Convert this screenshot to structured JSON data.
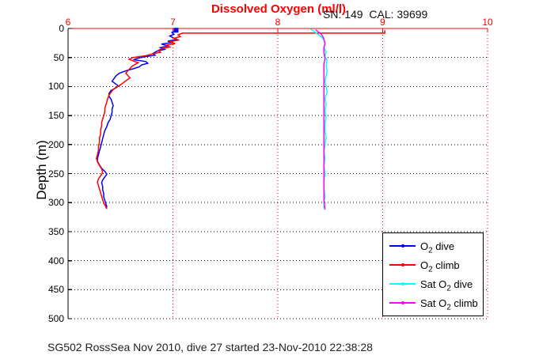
{
  "title": "Dissolved Oxygen (ml/l)",
  "annotation": "SN: 149  CAL: 39699",
  "footer": "SG502 RossSea Nov 2010, dive 27 started 23-Nov-2010 22:38:28",
  "chart_data": {
    "type": "line",
    "title": "Dissolved Oxygen (ml/l)",
    "xlabel": "",
    "ylabel": "Depth (m)",
    "xlim": [
      6,
      10
    ],
    "ylim": [
      0,
      500
    ],
    "y_axis_reversed": true,
    "xticks": [
      6,
      7,
      8,
      9,
      10
    ],
    "yticks": [
      0,
      50,
      100,
      150,
      200,
      250,
      300,
      350,
      400,
      450,
      500
    ],
    "x_gridlines": [
      7,
      8,
      9,
      10
    ],
    "y_gridlines": [
      50,
      100,
      150,
      200,
      250,
      300,
      350,
      400,
      450,
      500
    ],
    "grid_style": "dotted",
    "x_axis_color": "#ff0000",
    "y_axis_color": "#000000",
    "x_gridline_color": "#ff0000",
    "y_gridline_color": "#000000",
    "legend_position": "bottom-right",
    "surface_marker": {
      "series": "O2 dive",
      "x": 7.03,
      "depth": 3,
      "shape": "square",
      "color": "#0000ff"
    },
    "series": [
      {
        "name": "O2 dive",
        "color": "#0000ff",
        "points": [
          [
            7.02,
            2
          ],
          [
            7.03,
            4
          ],
          [
            6.99,
            7
          ],
          [
            7.01,
            10
          ],
          [
            6.97,
            13
          ],
          [
            7.0,
            16
          ],
          [
            7.04,
            19
          ],
          [
            6.95,
            22
          ],
          [
            7.0,
            24
          ],
          [
            6.89,
            27
          ],
          [
            6.96,
            30
          ],
          [
            6.88,
            33
          ],
          [
            6.92,
            36
          ],
          [
            6.85,
            39
          ],
          [
            6.81,
            43
          ],
          [
            6.83,
            46
          ],
          [
            6.72,
            49
          ],
          [
            6.65,
            52
          ],
          [
            6.63,
            54
          ],
          [
            6.74,
            57
          ],
          [
            6.76,
            60
          ],
          [
            6.7,
            63
          ],
          [
            6.68,
            66
          ],
          [
            6.63,
            69
          ],
          [
            6.55,
            73
          ],
          [
            6.49,
            77
          ],
          [
            6.46,
            81
          ],
          [
            6.44,
            86
          ],
          [
            6.42,
            91
          ],
          [
            6.45,
            95
          ],
          [
            6.48,
            99
          ],
          [
            6.45,
            103
          ],
          [
            6.41,
            107
          ],
          [
            6.39,
            112
          ],
          [
            6.39,
            117
          ],
          [
            6.41,
            122
          ],
          [
            6.42,
            127
          ],
          [
            6.43,
            133
          ],
          [
            6.42,
            139
          ],
          [
            6.42,
            145
          ],
          [
            6.41,
            151
          ],
          [
            6.4,
            157
          ],
          [
            6.38,
            163
          ],
          [
            6.37,
            169
          ],
          [
            6.35,
            176
          ],
          [
            6.34,
            183
          ],
          [
            6.33,
            190
          ],
          [
            6.32,
            197
          ],
          [
            6.31,
            204
          ],
          [
            6.3,
            211
          ],
          [
            6.29,
            218
          ],
          [
            6.28,
            224
          ],
          [
            6.28,
            229
          ],
          [
            6.3,
            235
          ],
          [
            6.32,
            241
          ],
          [
            6.35,
            246
          ],
          [
            6.37,
            251
          ],
          [
            6.35,
            256
          ],
          [
            6.33,
            261
          ],
          [
            6.32,
            266
          ],
          [
            6.33,
            272
          ],
          [
            6.33,
            278
          ],
          [
            6.34,
            284
          ],
          [
            6.34,
            290
          ],
          [
            6.35,
            296
          ],
          [
            6.36,
            302
          ],
          [
            6.37,
            307
          ],
          [
            6.36,
            310
          ]
        ]
      },
      {
        "name": "O2 climb",
        "color": "#ff0000",
        "points": [
          [
            9.02,
            3
          ],
          [
            9.02,
            8
          ],
          [
            7.09,
            8
          ],
          [
            7.05,
            11
          ],
          [
            7.07,
            14
          ],
          [
            7.01,
            17
          ],
          [
            7.05,
            20
          ],
          [
            6.97,
            23
          ],
          [
            7.02,
            26
          ],
          [
            6.93,
            29
          ],
          [
            6.97,
            32
          ],
          [
            6.89,
            35
          ],
          [
            6.86,
            38
          ],
          [
            6.88,
            41
          ],
          [
            6.8,
            44
          ],
          [
            6.74,
            47
          ],
          [
            6.62,
            50
          ],
          [
            6.58,
            53
          ],
          [
            6.62,
            56
          ],
          [
            6.67,
            59
          ],
          [
            6.64,
            62
          ],
          [
            6.61,
            65
          ],
          [
            6.59,
            69
          ],
          [
            6.57,
            73
          ],
          [
            6.55,
            77
          ],
          [
            6.57,
            81
          ],
          [
            6.59,
            85
          ],
          [
            6.56,
            89
          ],
          [
            6.53,
            93
          ],
          [
            6.5,
            97
          ],
          [
            6.46,
            101
          ],
          [
            6.43,
            105
          ],
          [
            6.41,
            110
          ],
          [
            6.39,
            115
          ],
          [
            6.38,
            120
          ],
          [
            6.37,
            126
          ],
          [
            6.36,
            132
          ],
          [
            6.35,
            138
          ],
          [
            6.35,
            144
          ],
          [
            6.34,
            150
          ],
          [
            6.33,
            156
          ],
          [
            6.32,
            162
          ],
          [
            6.32,
            168
          ],
          [
            6.31,
            175
          ],
          [
            6.31,
            182
          ],
          [
            6.3,
            189
          ],
          [
            6.3,
            196
          ],
          [
            6.29,
            203
          ],
          [
            6.29,
            210
          ],
          [
            6.28,
            217
          ],
          [
            6.27,
            224
          ],
          [
            6.28,
            230
          ],
          [
            6.3,
            236
          ],
          [
            6.32,
            242
          ],
          [
            6.33,
            248
          ],
          [
            6.31,
            254
          ],
          [
            6.29,
            259
          ],
          [
            6.28,
            265
          ],
          [
            6.29,
            271
          ],
          [
            6.3,
            277
          ],
          [
            6.31,
            283
          ],
          [
            6.32,
            289
          ],
          [
            6.33,
            295
          ],
          [
            6.34,
            301
          ],
          [
            6.36,
            307
          ],
          [
            6.37,
            311
          ]
        ]
      },
      {
        "name": "Sat O2 dive",
        "color": "#00ffff",
        "points": [
          [
            8.31,
            1
          ],
          [
            8.34,
            4
          ],
          [
            8.36,
            7
          ],
          [
            8.39,
            11
          ],
          [
            8.42,
            15
          ],
          [
            8.44,
            20
          ],
          [
            8.45,
            26
          ],
          [
            8.44,
            33
          ],
          [
            8.46,
            40
          ],
          [
            8.45,
            48
          ],
          [
            8.47,
            56
          ],
          [
            8.46,
            64
          ],
          [
            8.47,
            73
          ],
          [
            8.46,
            82
          ],
          [
            8.45,
            91
          ],
          [
            8.46,
            100
          ],
          [
            8.47,
            110
          ],
          [
            8.45,
            120
          ],
          [
            8.46,
            131
          ],
          [
            8.45,
            142
          ],
          [
            8.46,
            153
          ],
          [
            8.45,
            164
          ],
          [
            8.45,
            176
          ],
          [
            8.46,
            188
          ],
          [
            8.45,
            200
          ],
          [
            8.44,
            212
          ],
          [
            8.45,
            224
          ],
          [
            8.44,
            237
          ],
          [
            8.45,
            250
          ],
          [
            8.44,
            262
          ],
          [
            8.44,
            275
          ],
          [
            8.45,
            288
          ],
          [
            8.44,
            300
          ],
          [
            8.44,
            310
          ]
        ]
      },
      {
        "name": "Sat O2 climb",
        "color": "#ff00ff",
        "points": [
          [
            8.36,
            2
          ],
          [
            8.38,
            5
          ],
          [
            8.41,
            9
          ],
          [
            8.43,
            14
          ],
          [
            8.44,
            19
          ],
          [
            8.45,
            25
          ],
          [
            8.44,
            33
          ],
          [
            8.44,
            42
          ],
          [
            8.45,
            52
          ],
          [
            8.44,
            62
          ],
          [
            8.44,
            73
          ],
          [
            8.44,
            85
          ],
          [
            8.44,
            97
          ],
          [
            8.44,
            110
          ],
          [
            8.44,
            123
          ],
          [
            8.44,
            136
          ],
          [
            8.44,
            150
          ],
          [
            8.44,
            164
          ],
          [
            8.44,
            178
          ],
          [
            8.44,
            192
          ],
          [
            8.44,
            206
          ],
          [
            8.44,
            220
          ],
          [
            8.44,
            235
          ],
          [
            8.44,
            250
          ],
          [
            8.44,
            265
          ],
          [
            8.44,
            280
          ],
          [
            8.44,
            295
          ],
          [
            8.45,
            312
          ]
        ]
      }
    ],
    "legend": {
      "entries": [
        {
          "pre": "O",
          "sub": "2",
          "post": " dive",
          "color": "#0000ff"
        },
        {
          "pre": "O",
          "sub": "2",
          "post": " climb",
          "color": "#ff0000"
        },
        {
          "pre": "Sat O",
          "sub": "2",
          "post": " dive",
          "color": "#00ffff"
        },
        {
          "pre": "Sat O",
          "sub": "2",
          "post": " climb",
          "color": "#ff00ff"
        }
      ]
    }
  }
}
